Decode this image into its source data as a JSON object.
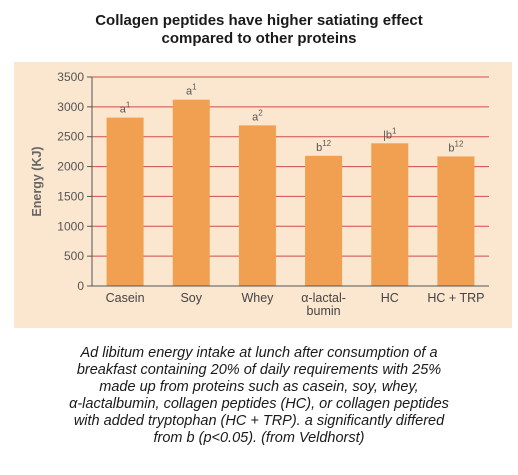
{
  "title_lines": [
    "Collagen peptides have higher satiating effect",
    "compared to other proteins"
  ],
  "caption_lines": [
    "Ad libitum energy intake at lunch after consumption of a",
    "breakfast containing 20% of daily requirements with 25%",
    "made up from proteins such as casein, soy, whey,",
    "α-lactalbumin, collagen peptides (HC), or collagen peptides",
    "with added tryptophan (HC + TRP). a significantly differed",
    "from b (p<0.05). (from Veldhorst)"
  ],
  "chart_data": {
    "type": "bar",
    "categories": [
      [
        "Casein"
      ],
      [
        "Soy"
      ],
      [
        "Whey"
      ],
      [
        "α-lactal-",
        "bumin"
      ],
      [
        "HC"
      ],
      [
        "HC + TRP"
      ]
    ],
    "values": [
      2820,
      3120,
      2690,
      2180,
      2390,
      2170
    ],
    "labels": [
      {
        "base": "a",
        "sup": "1"
      },
      {
        "base": "a",
        "sup": "1"
      },
      {
        "base": "a",
        "sup": "2"
      },
      {
        "base": "b",
        "sup": "12"
      },
      {
        "base": "|b",
        "sup": "1"
      },
      {
        "base": "b",
        "sup": "12"
      }
    ],
    "ylabel": "Energy (KJ)",
    "ylim": [
      0,
      3500
    ],
    "yticks": [
      0,
      500,
      1000,
      1500,
      2000,
      2500,
      3000,
      3500
    ],
    "grid": true,
    "colors": {
      "bar": "#f0a050",
      "grid": "#cf4e48",
      "axis": "#555555",
      "background": "#fbe6cf"
    }
  }
}
